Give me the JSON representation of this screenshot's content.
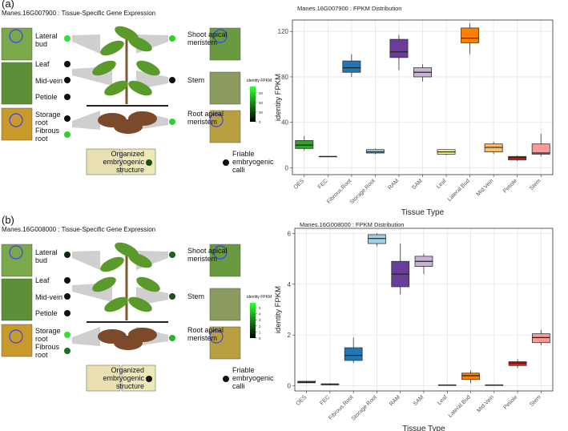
{
  "panels": [
    {
      "label": "(a)",
      "diagram": {
        "title": "Manes.16G007900 : Tissue-Specific Gene Expression",
        "tissues": [
          {
            "label": "Lateral bud",
            "dot": "#33e033"
          },
          {
            "label": "Leaf",
            "dot": "#111111"
          },
          {
            "label": "Mid-vein",
            "dot": "#111111"
          },
          {
            "label": "Petiole",
            "dot": "#111111"
          },
          {
            "label": "Storage root",
            "dot": "#111111"
          },
          {
            "label": "Fibrous root",
            "dot": "#2ed02e"
          },
          {
            "label": "Shoot apical meristem",
            "dot": "#2ed02e"
          },
          {
            "label": "Stem",
            "dot": "#111111"
          },
          {
            "label": "Root apical meristem",
            "dot": "#2ed02e"
          },
          {
            "label": "Organized embryogenic structure",
            "dot": "#1d4d1d"
          },
          {
            "label": "Friable embryogenic calli",
            "dot": "#111111"
          }
        ],
        "legend_title": "identity FPKM",
        "legend_lim": [
          0,
          110
        ],
        "legend_ticks": [
          0,
          30,
          60,
          90
        ]
      }
    },
    {
      "label": "(b)",
      "diagram": {
        "title": "Manes.16G008000 : Tissue-Specific Gene Expression",
        "tissues": [
          {
            "label": "Lateral bud",
            "dot": "#0d260d"
          },
          {
            "label": "Leaf",
            "dot": "#111111"
          },
          {
            "label": "Mid-vein",
            "dot": "#111111"
          },
          {
            "label": "Petiole",
            "dot": "#111111"
          },
          {
            "label": "Storage root",
            "dot": "#33e033"
          },
          {
            "label": "Fibrous root",
            "dot": "#1e6e1e"
          },
          {
            "label": "Shoot apical meristem",
            "dot": "#1f5f1f"
          },
          {
            "label": "Stem",
            "dot": "#1d4d1d"
          },
          {
            "label": "Root apical meristem",
            "dot": "#2ab02a"
          },
          {
            "label": "Organized embryogenic structure",
            "dot": "#111111"
          },
          {
            "label": "Friable embryogenic calli",
            "dot": "#111111"
          }
        ],
        "legend_title": "identity FPKM",
        "legend_lim": [
          0,
          5.8
        ],
        "legend_ticks": [
          0,
          1,
          2,
          3,
          4,
          5
        ]
      }
    }
  ],
  "chart_data": [
    {
      "type": "box",
      "title": "Manes.16G007900 : FPKM Distribution",
      "x_label": "Tissue Type",
      "y_label": "identity FPKM",
      "categories": [
        "OES",
        "FEC",
        "Fibrous.Root",
        "Storage.Root",
        "RAM",
        "SAM",
        "Leaf",
        "Lateral.Bud",
        "Mid.Vein",
        "Petiole",
        "Stem"
      ],
      "colors": [
        "#33a02c",
        "#555555",
        "#1f78b4",
        "#a6cee3",
        "#6a3d9a",
        "#cab2d6",
        "#ffff99",
        "#ff7f00",
        "#fdbf6f",
        "#e31a1c",
        "#fb9a99"
      ],
      "stats": [
        [
          15,
          17,
          20,
          24,
          28
        ],
        [
          10,
          10,
          10,
          10,
          10
        ],
        [
          80,
          84,
          88,
          94,
          100
        ],
        [
          12,
          13,
          14,
          16,
          17
        ],
        [
          86,
          97,
          102,
          113,
          117
        ],
        [
          76,
          80,
          84,
          88,
          91
        ],
        [
          11,
          12,
          14,
          16,
          16
        ],
        [
          100,
          110,
          114,
          123,
          127
        ],
        [
          12,
          14,
          18,
          21,
          23
        ],
        [
          6,
          7,
          9,
          10,
          11
        ],
        [
          10,
          12,
          13,
          21,
          30
        ]
      ],
      "ylim": [
        -6,
        130
      ],
      "yticks": [
        0,
        40,
        80,
        120
      ],
      "grid": true
    },
    {
      "type": "box",
      "title": "Manes.16G008000 : FPKM Distribution",
      "x_label": "Tissue Type",
      "y_label": "identity FPKM",
      "categories": [
        "OES",
        "FEC",
        "Fibrous.Root",
        "Storage.Root",
        "RAM",
        "SAM",
        "Leaf",
        "Lateral.Bud",
        "Mid.Vein",
        "Petiole",
        "Stem"
      ],
      "colors": [
        "#33a02c",
        "#555555",
        "#1f78b4",
        "#a6cee3",
        "#6a3d9a",
        "#cab2d6",
        "#ffff99",
        "#ff7f00",
        "#fdbf6f",
        "#e31a1c",
        "#fb9a99"
      ],
      "stats": [
        [
          0.1,
          0.12,
          0.15,
          0.18,
          0.2
        ],
        [
          0.02,
          0.04,
          0.06,
          0.08,
          0.1
        ],
        [
          0.9,
          1.0,
          1.2,
          1.5,
          1.9
        ],
        [
          5.5,
          5.6,
          5.8,
          5.95,
          6.0
        ],
        [
          3.6,
          3.9,
          4.4,
          4.9,
          5.6
        ],
        [
          4.4,
          4.7,
          4.9,
          5.1,
          5.2
        ],
        [
          0.01,
          0.02,
          0.03,
          0.04,
          0.05
        ],
        [
          0.1,
          0.25,
          0.4,
          0.5,
          0.6
        ],
        [
          0.01,
          0.02,
          0.03,
          0.04,
          0.05
        ],
        [
          0.7,
          0.8,
          0.9,
          0.95,
          1.05
        ],
        [
          1.6,
          1.7,
          1.9,
          2.05,
          2.2
        ]
      ],
      "ylim": [
        -0.2,
        6.2
      ],
      "yticks": [
        0,
        2,
        4,
        6
      ],
      "grid": true
    }
  ]
}
